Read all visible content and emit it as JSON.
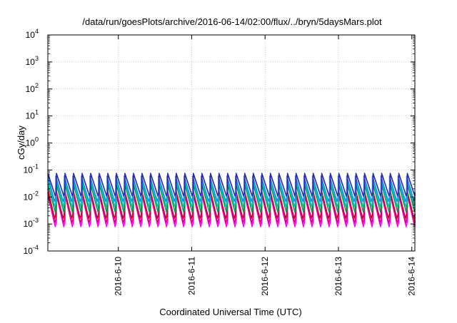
{
  "chart_data": {
    "type": "line",
    "title": "/data/run/goesPlots/archive/2016-06-14/02:00/flux/../bryn/5daysMars.plot",
    "xlabel": "Coordinated Universal Time (UTC)",
    "ylabel": "cGy/day",
    "yscale": "log",
    "ylim": [
      0.0001,
      10000
    ],
    "y_ticks": [
      {
        "base": "10",
        "exp": "-4",
        "value": 0.0001
      },
      {
        "base": "10",
        "exp": "-3",
        "value": 0.001
      },
      {
        "base": "10",
        "exp": "-2",
        "value": 0.01
      },
      {
        "base": "10",
        "exp": "-1",
        "value": 0.1
      },
      {
        "base": "10",
        "exp": "0",
        "value": 1
      },
      {
        "base": "10",
        "exp": "1",
        "value": 10
      },
      {
        "base": "10",
        "exp": "2",
        "value": 100
      },
      {
        "base": "10",
        "exp": "3",
        "value": 1000
      },
      {
        "base": "10",
        "exp": "4",
        "value": 10000
      }
    ],
    "xlim": [
      "2016-06-09 00:56",
      "2016-06-14 01:00"
    ],
    "x_tick_labels": [
      "2016-6-10",
      "2016-6-11",
      "2016-6-12",
      "2016-6-13",
      "2016-6-14"
    ],
    "grid": true,
    "legend": "none",
    "sawtooth_period_hours": 2.8,
    "series": [
      {
        "color": "#ff00ff",
        "peak": 0.012,
        "trough": 0.0008
      },
      {
        "color": "#e0007a",
        "peak": 0.015,
        "trough": 0.0011
      },
      {
        "color": "#cc0033",
        "peak": 0.02,
        "trough": 0.0016
      },
      {
        "color": "#00a050",
        "peak": 0.03,
        "trough": 0.0028
      },
      {
        "color": "#00c8c8",
        "peak": 0.045,
        "trough": 0.0045
      },
      {
        "color": "#1a8cff",
        "peak": 0.06,
        "trough": 0.007
      },
      {
        "color": "#2a2ab0",
        "peak": 0.075,
        "trough": 0.011
      }
    ]
  }
}
